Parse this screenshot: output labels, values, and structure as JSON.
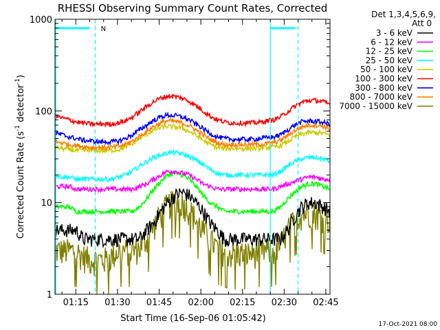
{
  "chart_data": {
    "type": "line",
    "title": "RHESSI Observing Summary Count Rates, Corrected",
    "xlabel": "Start Time (16-Sep-06 01:05:42)",
    "ylabel_main": "Corrected Count Rate (s",
    "ylabel_sup1": "-1",
    "ylabel_mid": " detector",
    "ylabel_sup2": "-1",
    "ylabel_end": ")",
    "ylog": true,
    "ylim": [
      1,
      1000
    ],
    "xlim_minutes": [
      7.5,
      46.5
    ],
    "x_ticks": [
      {
        "m": 15,
        "label": "01:15"
      },
      {
        "m": 30,
        "label": "01:30"
      },
      {
        "m": 45,
        "label": "01:45"
      },
      {
        "m": 60,
        "label": "02:00"
      },
      {
        "m": 75,
        "label": "02:15"
      },
      {
        "m": 90,
        "label": "02:30"
      },
      {
        "m": 105,
        "label": "02:45"
      }
    ],
    "y_ticks": [
      {
        "v": 1,
        "label": "1"
      },
      {
        "v": 10,
        "label": "10"
      },
      {
        "v": 100,
        "label": "100"
      },
      {
        "v": 1000,
        "label": "1000"
      }
    ],
    "legend_header": [
      "Det 1,3,4,5,6,9,",
      "Att 0"
    ],
    "legend_placement": "right",
    "date_stamp": "17-Oct-2021 08:00",
    "flag_label": "N",
    "series": [
      {
        "name": "3 - 6 keV",
        "color": "#000000",
        "values": [
          5,
          5,
          5,
          5,
          4,
          4,
          4,
          4,
          4,
          4,
          4,
          4,
          4,
          5,
          6,
          8,
          10,
          12,
          13,
          12,
          10,
          8,
          6,
          5,
          4,
          4,
          4,
          4,
          4,
          4,
          4,
          4,
          4,
          5,
          7,
          9,
          10,
          10,
          9,
          8
        ]
      },
      {
        "name": "6 - 12 keV",
        "color": "#ff00ff",
        "values": [
          15,
          15,
          15,
          14,
          14,
          14,
          14,
          14,
          14,
          14,
          14,
          14,
          15,
          16,
          18,
          20,
          22,
          22,
          21,
          20,
          18,
          16,
          15,
          14,
          14,
          14,
          14,
          14,
          14,
          14,
          14,
          14,
          15,
          16,
          17,
          18,
          19,
          19,
          18,
          18
        ]
      },
      {
        "name": "12 - 25 keV",
        "color": "#00ff00",
        "values": [
          9,
          9,
          9,
          8,
          8,
          8,
          8,
          8,
          8,
          8,
          8,
          8,
          9,
          11,
          14,
          17,
          20,
          21,
          20,
          18,
          15,
          12,
          10,
          9,
          8,
          8,
          8,
          8,
          8,
          8,
          8,
          8,
          9,
          11,
          13,
          15,
          16,
          16,
          15,
          14
        ]
      },
      {
        "name": "25 - 50 keV",
        "color": "#00ffff",
        "values": [
          20,
          19,
          19,
          18,
          18,
          18,
          18,
          18,
          18,
          19,
          20,
          22,
          25,
          28,
          31,
          33,
          35,
          35,
          34,
          32,
          29,
          26,
          23,
          21,
          20,
          20,
          20,
          20,
          20,
          20,
          20,
          20,
          22,
          25,
          28,
          30,
          31,
          31,
          30,
          28
        ]
      },
      {
        "name": "50 - 100 keV",
        "color": "#cccc00",
        "values": [
          40,
          39,
          38,
          37,
          37,
          37,
          37,
          37,
          37,
          38,
          40,
          44,
          50,
          56,
          62,
          66,
          68,
          67,
          65,
          60,
          54,
          48,
          43,
          40,
          39,
          39,
          39,
          39,
          39,
          39,
          40,
          40,
          42,
          46,
          52,
          56,
          58,
          58,
          57,
          54
        ]
      },
      {
        "name": "100 - 300 keV",
        "color": "#ff0000",
        "values": [
          88,
          84,
          80,
          76,
          74,
          72,
          72,
          72,
          72,
          74,
          78,
          86,
          98,
          112,
          126,
          138,
          145,
          144,
          138,
          128,
          114,
          100,
          88,
          80,
          76,
          74,
          74,
          74,
          74,
          75,
          78,
          80,
          86,
          98,
          112,
          124,
          130,
          130,
          126,
          118
        ]
      },
      {
        "name": "300 - 800 keV",
        "color": "#0000ff",
        "values": [
          57,
          55,
          52,
          50,
          48,
          47,
          46,
          46,
          46,
          47,
          50,
          55,
          62,
          70,
          79,
          86,
          90,
          89,
          86,
          80,
          72,
          64,
          57,
          52,
          50,
          49,
          49,
          49,
          49,
          50,
          51,
          52,
          55,
          62,
          70,
          76,
          78,
          77,
          75,
          72
        ]
      },
      {
        "name": "800 - 7000 keV",
        "color": "#ff8000",
        "values": [
          46,
          45,
          43,
          42,
          41,
          40,
          40,
          40,
          40,
          41,
          43,
          47,
          53,
          60,
          68,
          74,
          78,
          77,
          74,
          69,
          62,
          55,
          49,
          45,
          43,
          43,
          43,
          43,
          43,
          43,
          44,
          45,
          48,
          54,
          61,
          67,
          70,
          70,
          68,
          64
        ]
      },
      {
        "name": "7000 - 15000 keV",
        "color": "#808000",
        "values": [
          3,
          3,
          3,
          3,
          2.6,
          2.4,
          2.4,
          2.4,
          2.6,
          3,
          3,
          3,
          3.2,
          4,
          5.5,
          7.5,
          9.5,
          10.5,
          10,
          8.5,
          6.5,
          5,
          4,
          3.2,
          3,
          2.8,
          2.8,
          2.8,
          2.8,
          3,
          3,
          3,
          3.5,
          5,
          6.5,
          7.5,
          8,
          7.5,
          7,
          6.5
        ]
      }
    ]
  }
}
